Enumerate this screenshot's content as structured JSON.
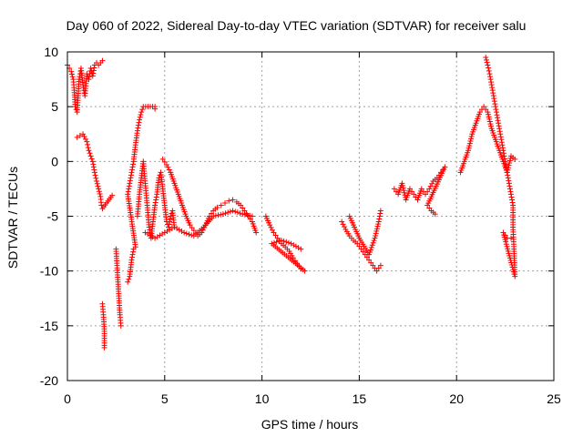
{
  "chart_data": {
    "type": "scatter",
    "title": "Day 060 of 2022, Sidereal Day-to-day VTEC variation (SDTVAR) for receiver salu",
    "xlabel": "GPS time / hours",
    "ylabel": "SDTVAR / TECUs",
    "xlim": [
      0,
      25
    ],
    "ylim": [
      -20,
      10
    ],
    "xticks": [
      0,
      5,
      10,
      15,
      20,
      25
    ],
    "yticks": [
      -20,
      -15,
      -10,
      -5,
      0,
      5,
      10
    ],
    "grid": true,
    "marker": "+",
    "color": "#ff0000",
    "segments": [
      {
        "name": "seg-1",
        "points": [
          [
            0.0,
            8.8
          ],
          [
            0.1,
            8.5
          ],
          [
            0.2,
            8.2
          ],
          [
            0.3,
            7.5
          ],
          [
            0.35,
            6.5
          ],
          [
            0.4,
            5.0
          ],
          [
            0.5,
            4.5
          ],
          [
            0.6,
            7.5
          ],
          [
            0.7,
            8.5
          ],
          [
            0.8,
            7.0
          ],
          [
            0.9,
            6.0
          ],
          [
            1.0,
            8.0
          ],
          [
            1.1,
            7.5
          ],
          [
            1.2,
            8.5
          ],
          [
            1.3,
            7.8
          ],
          [
            1.4,
            8.8
          ],
          [
            1.5,
            9.0
          ],
          [
            1.6,
            8.8
          ],
          [
            1.7,
            9.0
          ],
          [
            1.8,
            9.2
          ]
        ]
      },
      {
        "name": "seg-2",
        "points": [
          [
            0.5,
            2.2
          ],
          [
            0.8,
            2.5
          ],
          [
            1.0,
            1.8
          ],
          [
            1.1,
            1.0
          ],
          [
            1.2,
            0.5
          ],
          [
            1.3,
            0.0
          ],
          [
            1.35,
            -0.5
          ],
          [
            1.4,
            -1.0
          ],
          [
            1.5,
            -1.8
          ],
          [
            1.6,
            -2.5
          ],
          [
            1.7,
            -3.2
          ],
          [
            1.75,
            -4.0
          ],
          [
            1.8,
            -4.3
          ],
          [
            2.3,
            -3.1
          ]
        ]
      },
      {
        "name": "seg-3",
        "points": [
          [
            1.8,
            -13.0
          ],
          [
            1.85,
            -14.0
          ],
          [
            1.9,
            -15.5
          ],
          [
            1.9,
            -17.0
          ],
          [
            2.5,
            -8.0
          ],
          [
            2.55,
            -9.5
          ],
          [
            2.6,
            -11.0
          ],
          [
            2.65,
            -12.5
          ],
          [
            2.7,
            -14.0
          ],
          [
            2.75,
            -15.0
          ]
        ]
      },
      {
        "name": "seg-4",
        "points": [
          [
            3.1,
            -11.0
          ],
          [
            3.2,
            -10.5
          ],
          [
            3.3,
            -9.0
          ],
          [
            3.4,
            -8.0
          ],
          [
            3.5,
            -7.8
          ],
          [
            3.1,
            -3.0
          ],
          [
            3.2,
            -2.0
          ],
          [
            3.3,
            -1.0
          ],
          [
            3.4,
            0.0
          ],
          [
            3.5,
            1.5
          ],
          [
            3.6,
            2.8
          ],
          [
            3.7,
            3.8
          ],
          [
            3.8,
            4.5
          ],
          [
            3.9,
            5.0
          ],
          [
            4.5,
            5.0
          ],
          [
            4.5,
            4.8
          ]
        ]
      },
      {
        "name": "seg-5",
        "points": [
          [
            3.6,
            -5.0
          ],
          [
            3.7,
            -3.0
          ],
          [
            3.8,
            -1.5
          ],
          [
            3.9,
            0.0
          ],
          [
            4.0,
            -2.0
          ],
          [
            4.1,
            -4.0
          ],
          [
            4.2,
            -6.0
          ],
          [
            4.3,
            -7.0
          ],
          [
            4.4,
            -5.5
          ],
          [
            4.5,
            -4.0
          ],
          [
            4.6,
            -3.0
          ],
          [
            4.7,
            -1.5
          ],
          [
            4.8,
            -1.0
          ],
          [
            4.9,
            -2.5
          ],
          [
            5.0,
            -4.0
          ],
          [
            5.1,
            -5.5
          ],
          [
            5.2,
            -6.0
          ],
          [
            5.3,
            -5.0
          ],
          [
            5.4,
            -4.5
          ],
          [
            5.5,
            -6.0
          ]
        ]
      },
      {
        "name": "seg-6",
        "points": [
          [
            4.9,
            0.2
          ],
          [
            5.1,
            -0.3
          ],
          [
            5.3,
            -1.0
          ],
          [
            5.5,
            -2.0
          ],
          [
            5.7,
            -3.0
          ],
          [
            5.9,
            -4.0
          ],
          [
            6.1,
            -5.0
          ],
          [
            6.3,
            -5.8
          ],
          [
            6.5,
            -6.3
          ],
          [
            6.7,
            -6.8
          ],
          [
            6.9,
            -6.5
          ],
          [
            7.1,
            -5.8
          ],
          [
            7.3,
            -5.0
          ],
          [
            7.5,
            -4.5
          ],
          [
            7.7,
            -4.2
          ],
          [
            7.9,
            -4.0
          ],
          [
            8.1,
            -3.8
          ],
          [
            8.3,
            -3.6
          ],
          [
            8.5,
            -3.5
          ],
          [
            8.7,
            -3.7
          ],
          [
            8.9,
            -4.0
          ],
          [
            9.1,
            -4.5
          ],
          [
            9.3,
            -5.0
          ],
          [
            9.5,
            -5.5
          ],
          [
            9.7,
            -6.5
          ]
        ]
      },
      {
        "name": "seg-7",
        "points": [
          [
            4.0,
            -6.5
          ],
          [
            4.5,
            -7.0
          ],
          [
            5.0,
            -6.5
          ],
          [
            5.5,
            -6.0
          ],
          [
            6.0,
            -6.5
          ],
          [
            6.5,
            -6.8
          ],
          [
            7.0,
            -6.0
          ],
          [
            7.5,
            -5.0
          ],
          [
            8.0,
            -4.8
          ],
          [
            8.5,
            -4.5
          ],
          [
            9.0,
            -4.8
          ],
          [
            9.5,
            -5.0
          ]
        ]
      },
      {
        "name": "seg-8",
        "points": [
          [
            10.2,
            -5.0
          ],
          [
            10.4,
            -5.8
          ],
          [
            10.6,
            -6.5
          ],
          [
            10.8,
            -7.0
          ],
          [
            11.0,
            -7.5
          ],
          [
            11.2,
            -7.8
          ],
          [
            11.4,
            -8.2
          ],
          [
            11.6,
            -8.8
          ],
          [
            11.8,
            -9.3
          ],
          [
            12.0,
            -9.8
          ],
          [
            12.2,
            -10.0
          ],
          [
            10.5,
            -7.5
          ],
          [
            11.0,
            -7.2
          ],
          [
            11.5,
            -7.5
          ],
          [
            12.0,
            -8.0
          ]
        ]
      },
      {
        "name": "seg-9",
        "points": [
          [
            14.1,
            -5.5
          ],
          [
            14.3,
            -6.2
          ],
          [
            14.5,
            -6.8
          ],
          [
            14.7,
            -7.2
          ],
          [
            14.9,
            -7.5
          ],
          [
            15.1,
            -8.0
          ],
          [
            15.3,
            -8.5
          ],
          [
            15.5,
            -9.0
          ],
          [
            15.7,
            -9.5
          ],
          [
            15.9,
            -10.0
          ],
          [
            16.1,
            -9.5
          ],
          [
            14.5,
            -5.0
          ],
          [
            15.0,
            -7.0
          ],
          [
            15.5,
            -8.5
          ],
          [
            15.8,
            -7.0
          ],
          [
            16.0,
            -5.5
          ],
          [
            16.1,
            -4.5
          ]
        ]
      },
      {
        "name": "seg-10",
        "points": [
          [
            16.8,
            -2.5
          ],
          [
            17.0,
            -3.0
          ],
          [
            17.2,
            -2.0
          ],
          [
            17.4,
            -3.5
          ],
          [
            17.6,
            -2.5
          ],
          [
            17.8,
            -3.0
          ],
          [
            18.0,
            -3.5
          ],
          [
            18.2,
            -2.5
          ],
          [
            18.4,
            -3.0
          ],
          [
            18.6,
            -2.5
          ],
          [
            18.8,
            -1.8
          ],
          [
            19.0,
            -1.5
          ],
          [
            19.2,
            -1.0
          ],
          [
            19.4,
            -0.5
          ],
          [
            18.5,
            -4.0
          ],
          [
            18.7,
            -4.5
          ],
          [
            18.9,
            -4.8
          ]
        ]
      },
      {
        "name": "seg-11",
        "points": [
          [
            20.2,
            -1.0
          ],
          [
            20.4,
            0.0
          ],
          [
            20.6,
            1.0
          ],
          [
            20.8,
            2.5
          ],
          [
            21.0,
            3.5
          ],
          [
            21.2,
            4.5
          ],
          [
            21.4,
            5.0
          ],
          [
            21.6,
            4.5
          ],
          [
            21.8,
            3.0
          ],
          [
            22.0,
            2.0
          ],
          [
            22.2,
            1.0
          ],
          [
            22.4,
            0.0
          ],
          [
            22.6,
            -1.0
          ],
          [
            22.8,
            0.5
          ],
          [
            23.0,
            0.2
          ]
        ]
      },
      {
        "name": "seg-12",
        "points": [
          [
            21.5,
            9.5
          ],
          [
            21.6,
            8.8
          ],
          [
            21.7,
            8.0
          ],
          [
            21.8,
            7.0
          ],
          [
            21.9,
            6.0
          ],
          [
            22.0,
            5.0
          ],
          [
            22.1,
            4.0
          ],
          [
            22.2,
            3.0
          ],
          [
            22.3,
            2.0
          ],
          [
            22.4,
            1.0
          ],
          [
            22.5,
            0.0
          ],
          [
            22.6,
            -1.0
          ],
          [
            22.7,
            -2.0
          ],
          [
            22.8,
            -3.0
          ],
          [
            22.9,
            -4.0
          ],
          [
            22.9,
            -6.0
          ],
          [
            22.95,
            -8.0
          ],
          [
            23.0,
            -10.5
          ],
          [
            22.4,
            -6.5
          ],
          [
            22.6,
            -7.0
          ],
          [
            22.8,
            -7.0
          ]
        ]
      }
    ]
  }
}
